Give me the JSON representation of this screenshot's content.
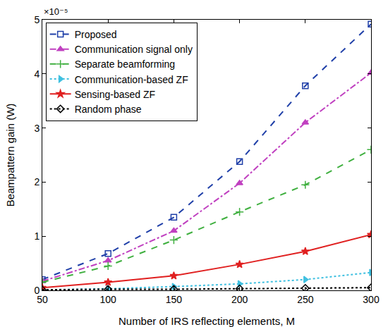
{
  "chart_data": {
    "type": "line",
    "x_label": "Number of IRS reflecting elements, M",
    "y_label": "Beampattern gain (W)",
    "annotations": [
      "×10⁻⁵"
    ],
    "x": [
      50,
      100,
      150,
      200,
      250,
      300
    ],
    "xlim": [
      50,
      300
    ],
    "xticks": [
      50,
      100,
      150,
      200,
      250,
      300
    ],
    "ylim": [
      0,
      5
    ],
    "yticks": [
      0,
      1,
      2,
      3,
      4,
      5
    ],
    "grid": false,
    "legend": "upper left",
    "series": [
      {
        "name": "Proposed",
        "color": "#1f3fa8",
        "marker": "square",
        "line_style": "dash",
        "values": [
          0.2,
          0.68,
          1.35,
          2.38,
          3.78,
          4.92
        ]
      },
      {
        "name": "Communication signal only",
        "color": "#c040c0",
        "marker": "triangle-up",
        "line_style": "dashdot",
        "values": [
          0.17,
          0.55,
          1.1,
          1.98,
          3.1,
          4.02
        ]
      },
      {
        "name": "Separate beamforming",
        "color": "#40b040",
        "marker": "cross",
        "line_style": "dash",
        "values": [
          0.15,
          0.45,
          0.93,
          1.45,
          1.95,
          2.6
        ]
      },
      {
        "name": "Communication-based ZF",
        "color": "#40c0e0",
        "marker": "triangle-right",
        "line_style": "dot",
        "values": [
          0.01,
          0.03,
          0.07,
          0.12,
          0.2,
          0.33
        ]
      },
      {
        "name": "Sensing-based ZF",
        "color": "#e02020",
        "marker": "star",
        "line_style": "solid",
        "values": [
          0.05,
          0.15,
          0.27,
          0.48,
          0.72,
          1.03
        ]
      },
      {
        "name": "Random phase",
        "color": "#000000",
        "marker": "diamond",
        "line_style": "dot",
        "values": [
          0.01,
          0.02,
          0.02,
          0.03,
          0.04,
          0.05
        ]
      }
    ]
  }
}
